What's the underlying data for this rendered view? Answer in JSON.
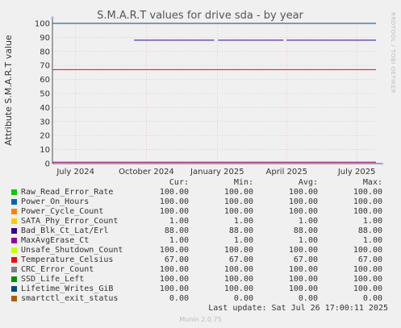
{
  "chart_data": {
    "type": "line",
    "title": "S.M.A.R.T values for drive sda - by year",
    "ylabel": "Attribute S.M.A.R.T value",
    "ylim": [
      0,
      100
    ],
    "yticks": [
      0,
      10,
      20,
      30,
      40,
      50,
      60,
      70,
      80,
      90,
      100
    ],
    "xlim": [
      "2024-06-01",
      "2025-07-26"
    ],
    "xticks": [
      {
        "date": "2024-07-01",
        "label": "July 2024"
      },
      {
        "date": "2024-10-01",
        "label": "October 2024"
      },
      {
        "date": "2025-01-01",
        "label": "January 2025"
      },
      {
        "date": "2025-04-01",
        "label": "April 2025"
      },
      {
        "date": "2025-07-01",
        "label": "July 2025"
      }
    ],
    "grid": true,
    "series": [
      {
        "name": "Raw_Read_Error_Rate",
        "color": "#00cc00",
        "cur": "100.00",
        "min": "100.00",
        "avg": "100.00",
        "max": "100.00",
        "segments": [
          [
            [
              "2024-06-01",
              100
            ],
            [
              "2025-07-26",
              100
            ]
          ]
        ]
      },
      {
        "name": "Power_On_Hours",
        "color": "#0066b3",
        "cur": "100.00",
        "min": "100.00",
        "avg": "100.00",
        "max": "100.00",
        "segments": [
          [
            [
              "2024-06-01",
              100
            ],
            [
              "2025-07-26",
              100
            ]
          ]
        ]
      },
      {
        "name": "Power_Cycle_Count",
        "color": "#ff8000",
        "cur": "100.00",
        "min": "100.00",
        "avg": "100.00",
        "max": "100.00",
        "segments": [
          [
            [
              "2024-06-01",
              100
            ],
            [
              "2025-07-26",
              100
            ]
          ]
        ]
      },
      {
        "name": "SATA_Phy_Error_Count",
        "color": "#ffcc00",
        "cur": "1.00",
        "min": "1.00",
        "avg": "1.00",
        "max": "1.00",
        "segments": [
          [
            [
              "2024-06-01",
              1
            ],
            [
              "2025-07-26",
              1
            ]
          ]
        ]
      },
      {
        "name": "Bad_Blk_Ct_Lat/Erl",
        "color": "#330099",
        "cur": "88.00",
        "min": "88.00",
        "avg": "88.00",
        "max": "88.00",
        "segments": [
          [
            [
              "2024-09-15",
              88
            ],
            [
              "2024-12-28",
              88
            ]
          ],
          [
            [
              "2025-01-02",
              88
            ],
            [
              "2025-03-28",
              88
            ]
          ],
          [
            [
              "2025-04-01",
              88
            ],
            [
              "2025-07-26",
              88
            ]
          ]
        ]
      },
      {
        "name": "MaxAvgErase_Ct",
        "color": "#990099",
        "cur": "1.00",
        "min": "1.00",
        "avg": "1.00",
        "max": "1.00",
        "segments": [
          [
            [
              "2024-06-01",
              1
            ],
            [
              "2025-07-26",
              1
            ]
          ]
        ]
      },
      {
        "name": "Unsafe_Shutdown_Count",
        "color": "#ccff00",
        "cur": "100.00",
        "min": "100.00",
        "avg": "100.00",
        "max": "100.00",
        "segments": [
          [
            [
              "2024-06-01",
              100
            ],
            [
              "2025-07-26",
              100
            ]
          ]
        ]
      },
      {
        "name": "Temperature_Celsius",
        "color": "#ff0000",
        "cur": "67.00",
        "min": "67.00",
        "avg": "67.00",
        "max": "67.00",
        "segments": [
          [
            [
              "2024-06-01",
              67
            ],
            [
              "2025-07-26",
              67
            ]
          ]
        ]
      },
      {
        "name": "CRC_Error_Count",
        "color": "#808080",
        "cur": "100.00",
        "min": "100.00",
        "avg": "100.00",
        "max": "100.00",
        "segments": [
          [
            [
              "2024-06-01",
              100
            ],
            [
              "2025-07-26",
              100
            ]
          ]
        ]
      },
      {
        "name": "SSD_Life_Left",
        "color": "#008f00",
        "cur": "100.00",
        "min": "100.00",
        "avg": "100.00",
        "max": "100.00",
        "segments": [
          [
            [
              "2024-06-01",
              100
            ],
            [
              "2025-07-26",
              100
            ]
          ]
        ]
      },
      {
        "name": "Lifetime_Writes_GiB",
        "color": "#00487d",
        "cur": "100.00",
        "min": "100.00",
        "avg": "100.00",
        "max": "100.00",
        "segments": [
          [
            [
              "2024-06-01",
              100
            ],
            [
              "2025-07-26",
              100
            ]
          ]
        ]
      },
      {
        "name": "smartctl_exit_status",
        "color": "#b35a00",
        "cur": "0.00",
        "min": "0.00",
        "avg": "0.00",
        "max": "0.00",
        "segments": [
          [
            [
              "2024-06-01",
              0
            ],
            [
              "2025-07-26",
              0
            ]
          ]
        ]
      }
    ]
  },
  "legend_headers": {
    "cur": "Cur:",
    "min": "Min:",
    "avg": "Avg:",
    "max": "Max:"
  },
  "last_update": "Last update: Sat Jul 26 17:00:11 2025",
  "side_text": "RRDTOOL / TOBI OETIKER",
  "footer": "Munin 2.0.75"
}
